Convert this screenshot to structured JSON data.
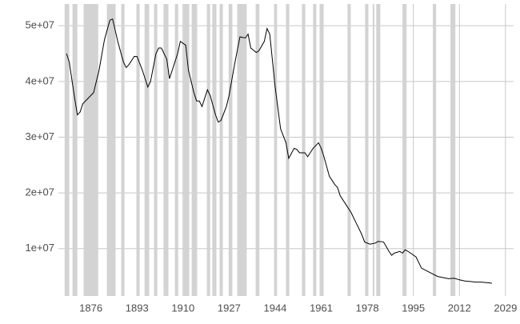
{
  "chart_data": {
    "type": "line",
    "x": [
      1867,
      1868,
      1870,
      1871,
      1872,
      1873,
      1875,
      1877,
      1879,
      1881,
      1883,
      1884,
      1886,
      1888,
      1889,
      1890,
      1892,
      1893,
      1895,
      1897,
      1898,
      1900,
      1901,
      1902,
      1904,
      1905,
      1906,
      1908,
      1909,
      1911,
      1912,
      1914,
      1915,
      1916,
      1917,
      1919,
      1920,
      1922,
      1923,
      1924,
      1926,
      1927,
      1929,
      1931,
      1933,
      1934,
      1935,
      1937,
      1938,
      1940,
      1941,
      1942,
      1944,
      1946,
      1948,
      1949,
      1951,
      1952,
      1953,
      1955,
      1956,
      1958,
      1960,
      1961,
      1962,
      1964,
      1966,
      1967,
      1968,
      1970,
      1972,
      1974,
      1976,
      1977,
      1979,
      1981,
      1982,
      1984,
      1986,
      1987,
      1988,
      1990,
      1991,
      1992,
      1994,
      1996,
      1998,
      2000,
      2002,
      2004,
      2006,
      2008,
      2010,
      2012,
      2014,
      2016,
      2018,
      2020,
      2022,
      2024
    ],
    "series": [
      {
        "color": "#000000",
        "values": [
          45000000,
          43500000,
          37000000,
          34000000,
          34500000,
          36000000,
          37000000,
          38000000,
          42000000,
          47500000,
          51000000,
          51200000,
          47000000,
          43500000,
          42500000,
          43000000,
          44500000,
          44500000,
          42000000,
          39000000,
          40000000,
          45000000,
          46000000,
          46000000,
          44000000,
          40500000,
          42000000,
          45000000,
          47200000,
          46500000,
          42000000,
          38000000,
          36500000,
          36500000,
          35500000,
          38500000,
          37500000,
          34000000,
          32700000,
          33000000,
          35500000,
          37500000,
          43000000,
          48000000,
          47800000,
          48500000,
          46000000,
          45200000,
          45500000,
          47200000,
          49500000,
          48500000,
          39000000,
          31500000,
          29000000,
          26200000,
          28000000,
          27800000,
          27200000,
          27200000,
          26500000,
          28000000,
          29000000,
          28000000,
          26500000,
          23000000,
          21500000,
          21000000,
          19500000,
          18000000,
          16500000,
          14500000,
          12500000,
          11200000,
          10800000,
          11000000,
          11300000,
          11200000,
          9500000,
          8800000,
          9200000,
          9500000,
          9200000,
          9800000,
          9200000,
          8500000,
          6500000,
          6000000,
          5500000,
          5000000,
          4800000,
          4600000,
          4700000,
          4400000,
          4200000,
          4100000,
          4000000,
          4000000,
          3900000,
          3800000
        ]
      }
    ],
    "bands": [
      [
        1866.3,
        1868.0
      ],
      [
        1869.2,
        1871.0
      ],
      [
        1873.3,
        1878.7
      ],
      [
        1881.9,
        1885.1
      ],
      [
        1887.2,
        1888.4
      ],
      [
        1892.8,
        1894.0
      ],
      [
        1895.8,
        1897.5
      ],
      [
        1899.3,
        1900.5
      ],
      [
        1902.8,
        1904.6
      ],
      [
        1907.0,
        1908.2
      ],
      [
        1910.2,
        1912.3
      ],
      [
        1913.2,
        1915.2
      ],
      [
        1918.8,
        1920.0
      ],
      [
        1920.8,
        1922.3
      ],
      [
        1923.5,
        1924.7
      ],
      [
        1927.0,
        1928.2
      ],
      [
        1930.0,
        1933.5
      ],
      [
        1936.8,
        1938.2
      ],
      [
        1943.6,
        1944.7
      ],
      [
        1948.0,
        1949.2
      ],
      [
        1953.9,
        1955.1
      ],
      [
        1958.0,
        1959.2
      ],
      [
        1960.4,
        1961.9
      ],
      [
        1970.7,
        1971.9
      ],
      [
        1977.2,
        1978.4
      ],
      [
        1980.0,
        1980.6
      ],
      [
        1981.3,
        1982.8
      ],
      [
        1991.0,
        1992.5
      ],
      [
        2002.2,
        2003.4
      ],
      [
        2008.7,
        2010.5
      ]
    ],
    "band_color": "#d3d3d3",
    "xlim": [
      1864,
      2032
    ],
    "ylim": [
      1500000,
      53900000
    ],
    "xticks": [
      1876,
      1893,
      1910,
      1927,
      1944,
      1961,
      1978,
      1995,
      2012,
      2029
    ],
    "yticks": [
      {
        "value": 10000000,
        "label": "1e+07"
      },
      {
        "value": 20000000,
        "label": "2e+07"
      },
      {
        "value": 30000000,
        "label": "3e+07"
      },
      {
        "value": 40000000,
        "label": "4e+07"
      },
      {
        "value": 50000000,
        "label": "5e+07"
      }
    ],
    "grid": true
  }
}
